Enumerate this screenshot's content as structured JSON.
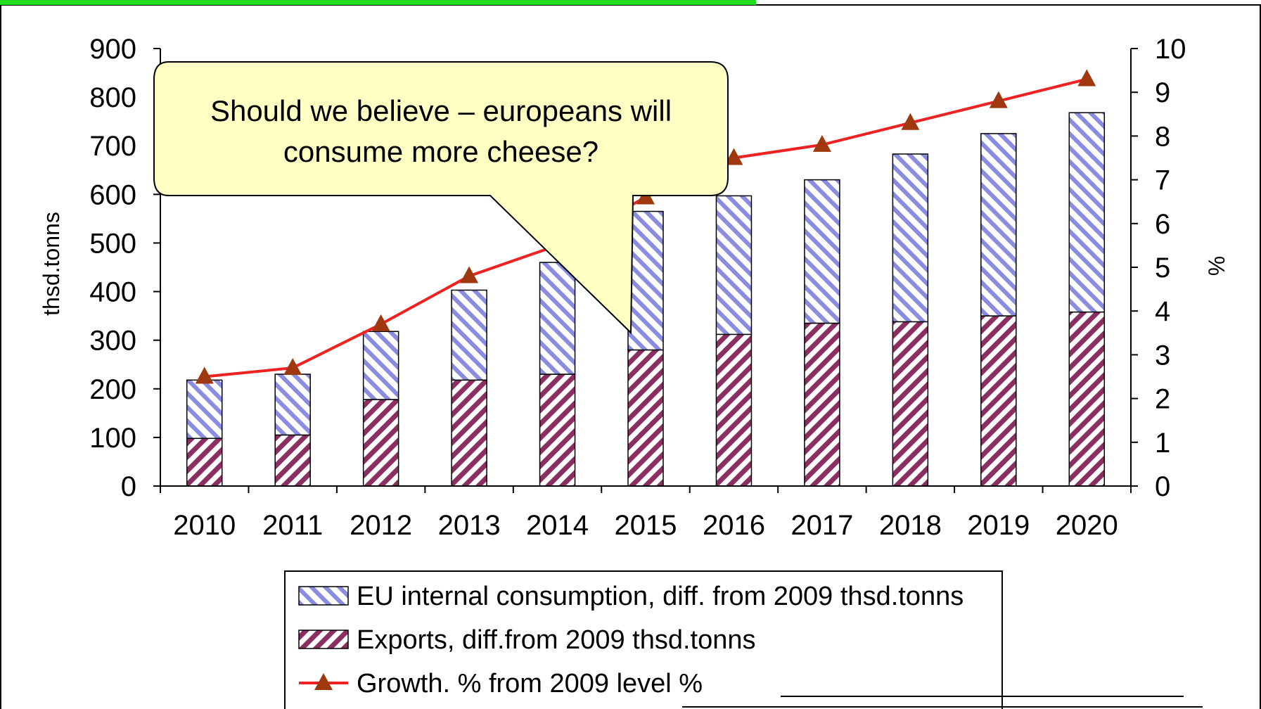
{
  "chart_data": {
    "type": "bar",
    "categories": [
      "2010",
      "2011",
      "2012",
      "2013",
      "2014",
      "2015",
      "2016",
      "2017",
      "2018",
      "2019",
      "2020"
    ],
    "series": [
      {
        "name": "EU internal consumption, diff. from 2009 thsd.tonns",
        "kind": "stacked-bar",
        "axis": "left",
        "values": [
          120,
          125,
          140,
          185,
          230,
          285,
          285,
          295,
          345,
          375,
          410
        ],
        "color": "#8888dd",
        "pattern": "diagonal-stripes"
      },
      {
        "name": "Exports, diff.from 2009 thsd.tonns",
        "kind": "stacked-bar",
        "axis": "left",
        "values": [
          98,
          105,
          178,
          218,
          230,
          280,
          312,
          335,
          338,
          350,
          358
        ],
        "color": "#8b3a62",
        "pattern": "diagonal-stripes"
      },
      {
        "name": "Growth. % from 2009 level %",
        "kind": "line",
        "axis": "right",
        "values": [
          2.5,
          2.7,
          3.7,
          4.8,
          5.5,
          6.6,
          7.5,
          7.8,
          8.3,
          8.8,
          9.3
        ],
        "color": "#ee2222",
        "marker": "triangle",
        "marker_color": "#a0380f"
      }
    ],
    "ylabel": "thsd.tonns",
    "ylabel_right": "%",
    "ylim": [
      0,
      900
    ],
    "ylim_right": [
      0,
      10
    ],
    "yticks": [
      0,
      100,
      200,
      300,
      400,
      500,
      600,
      700,
      800,
      900
    ],
    "yticks_right": [
      0,
      1,
      2,
      3,
      4,
      5,
      6,
      7,
      8,
      9,
      10
    ],
    "grid": false,
    "legend_placement": "bottom-center",
    "annotation": "Should we believe – europeans will consume more cheese?",
    "annotation_lines": [
      "Should we believe – europeans will",
      "consume more cheese?"
    ]
  }
}
